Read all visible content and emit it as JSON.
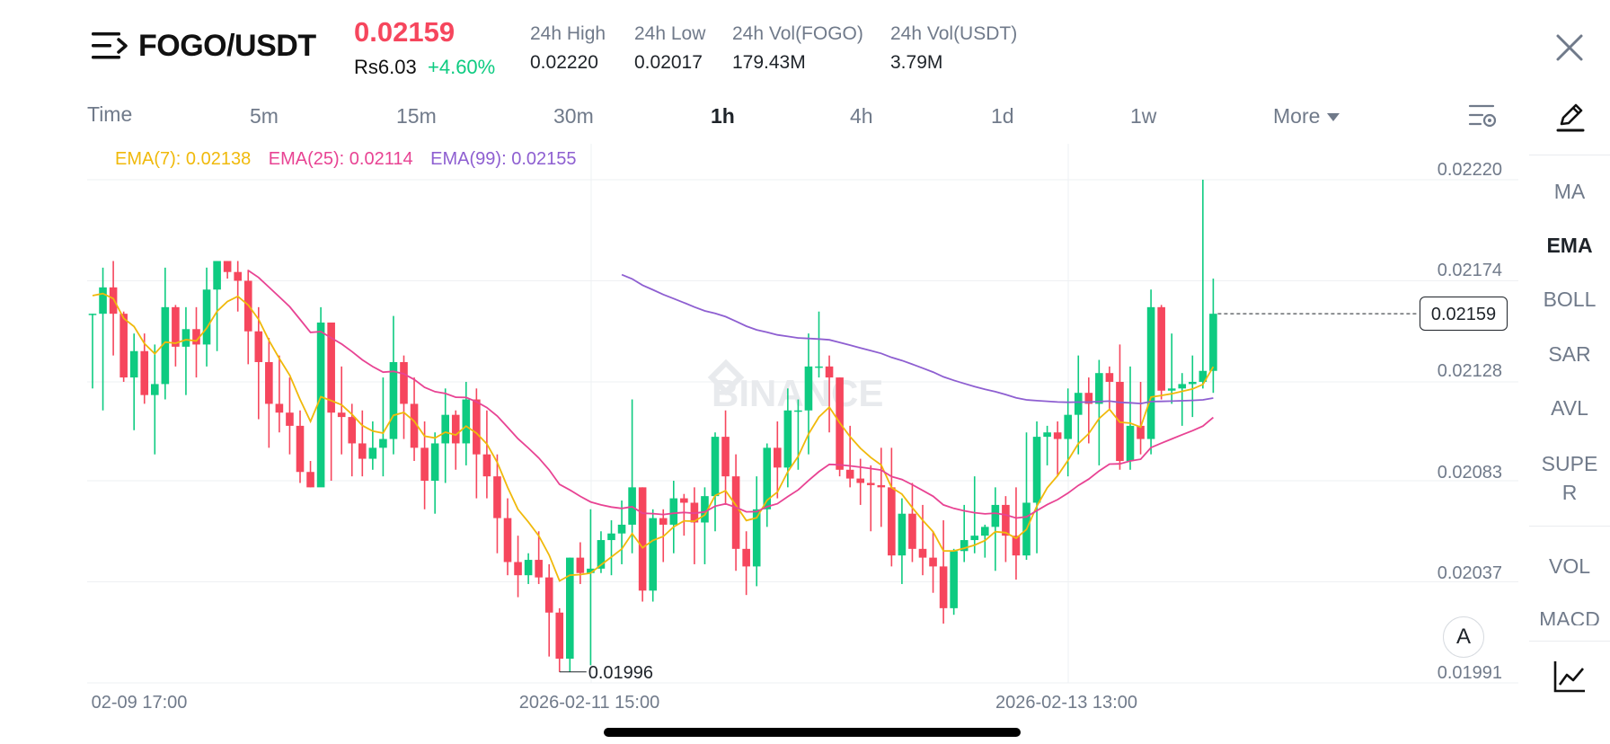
{
  "header": {
    "pair": "FOGO/USDT",
    "price": "0.02159",
    "price_inr": "Rs6.03",
    "change": "+4.60%",
    "stats": [
      {
        "label": "24h High",
        "value": "0.02220"
      },
      {
        "label": "24h Low",
        "value": "0.02017"
      },
      {
        "label": "24h Vol(FOGO)",
        "value": "179.43M"
      },
      {
        "label": "24h Vol(USDT)",
        "value": "3.79M"
      }
    ]
  },
  "timeframes": {
    "items": [
      "Time",
      "5m",
      "15m",
      "30m",
      "1h",
      "4h",
      "1d",
      "1w"
    ],
    "active": "1h",
    "more_label": "More"
  },
  "ema_legend": {
    "ema7": "EMA(7): 0.02138",
    "ema25": "EMA(25): 0.02114",
    "ema99": "EMA(99): 0.02155"
  },
  "sidebar": {
    "items": [
      "MA",
      "EMA",
      "BOLL",
      "SAR",
      "AVL",
      "SUPE\nR",
      "VOL",
      "MACD"
    ],
    "active": "EMA"
  },
  "colors": {
    "up": "#0ecb81",
    "down": "#f6465d",
    "ema7": "#f0b90b",
    "ema25": "#e84393",
    "ema99": "#8e5fd1",
    "watermark": "#e8eaed"
  },
  "watermark": "BINANCE",
  "a_button": "A",
  "chart_data": {
    "type": "candlestick",
    "y_ticks": [
      "0.02220",
      "0.02174",
      "0.02128",
      "0.02083",
      "0.02037",
      "0.01991"
    ],
    "ylim": [
      0.01991,
      0.0222
    ],
    "x_ticks": [
      "02-09 17:00",
      "2026-02-11 15:00",
      "2026-02-13 13:00"
    ],
    "last_price_label": "0.02159",
    "low_label": "0.01996",
    "candles": [
      [
        0.02159,
        0.02159,
        0.02125,
        0.02159
      ],
      [
        0.02159,
        0.0218,
        0.02115,
        0.02171
      ],
      [
        0.02171,
        0.02183,
        0.0214,
        0.02159
      ],
      [
        0.02159,
        0.0216,
        0.02128,
        0.0213
      ],
      [
        0.0213,
        0.0215,
        0.02106,
        0.02142
      ],
      [
        0.02142,
        0.0215,
        0.02118,
        0.02122
      ],
      [
        0.02122,
        0.02145,
        0.02095,
        0.02127
      ],
      [
        0.02127,
        0.0218,
        0.0212,
        0.02162
      ],
      [
        0.02162,
        0.02163,
        0.02135,
        0.02144
      ],
      [
        0.02144,
        0.02162,
        0.02122,
        0.02152
      ],
      [
        0.02152,
        0.02162,
        0.0213,
        0.02145
      ],
      [
        0.02145,
        0.0218,
        0.02135,
        0.0217
      ],
      [
        0.0217,
        0.02183,
        0.02142,
        0.02183
      ],
      [
        0.02183,
        0.02183,
        0.02175,
        0.02178
      ],
      [
        0.02178,
        0.02183,
        0.0216,
        0.02174
      ],
      [
        0.02174,
        0.02179,
        0.02136,
        0.02151
      ],
      [
        0.02151,
        0.02162,
        0.02111,
        0.02137
      ],
      [
        0.02137,
        0.02148,
        0.02098,
        0.02118
      ],
      [
        0.02118,
        0.0214,
        0.02105,
        0.02114
      ],
      [
        0.02114,
        0.0213,
        0.02095,
        0.02108
      ],
      [
        0.02108,
        0.02115,
        0.02082,
        0.02087
      ],
      [
        0.02087,
        0.02092,
        0.0208,
        0.0208
      ],
      [
        0.0208,
        0.02162,
        0.02082,
        0.02155
      ],
      [
        0.02155,
        0.02155,
        0.02083,
        0.02114
      ],
      [
        0.02114,
        0.02135,
        0.02095,
        0.02112
      ],
      [
        0.02112,
        0.02118,
        0.02085,
        0.021
      ],
      [
        0.021,
        0.02115,
        0.02085,
        0.02093
      ],
      [
        0.02093,
        0.0211,
        0.02088,
        0.02098
      ],
      [
        0.02098,
        0.0213,
        0.02085,
        0.02102
      ],
      [
        0.02102,
        0.02158,
        0.02095,
        0.02137
      ],
      [
        0.02137,
        0.0214,
        0.02102,
        0.02118
      ],
      [
        0.02118,
        0.0213,
        0.02092,
        0.02098
      ],
      [
        0.02098,
        0.0211,
        0.0207,
        0.02083
      ],
      [
        0.02083,
        0.02105,
        0.02068,
        0.021
      ],
      [
        0.021,
        0.02125,
        0.02082,
        0.02113
      ],
      [
        0.02113,
        0.02115,
        0.02088,
        0.021
      ],
      [
        0.021,
        0.02128,
        0.0209,
        0.0212
      ],
      [
        0.0212,
        0.02125,
        0.02075,
        0.02095
      ],
      [
        0.02095,
        0.02115,
        0.02075,
        0.02085
      ],
      [
        0.02085,
        0.02095,
        0.0205,
        0.02066
      ],
      [
        0.02066,
        0.02075,
        0.0204,
        0.02046
      ],
      [
        0.02046,
        0.02058,
        0.0203,
        0.0204
      ],
      [
        0.0204,
        0.0205,
        0.02036,
        0.02047
      ],
      [
        0.02047,
        0.0206,
        0.02036,
        0.02039
      ],
      [
        0.02039,
        0.02045,
        0.02003,
        0.02023
      ],
      [
        0.02023,
        0.02025,
        0.01996,
        0.02002
      ],
      [
        0.02002,
        0.02048,
        0.01996,
        0.02048
      ],
      [
        0.02048,
        0.02055,
        0.02036,
        0.02041
      ],
      [
        0.02041,
        0.0207,
        0.01999,
        0.02043
      ],
      [
        0.02043,
        0.0206,
        0.02041,
        0.02056
      ],
      [
        0.02056,
        0.02065,
        0.0204,
        0.02059
      ],
      [
        0.02059,
        0.02074,
        0.02045,
        0.02063
      ],
      [
        0.02063,
        0.0212,
        0.0205,
        0.0208
      ],
      [
        0.0208,
        0.0208,
        0.02028,
        0.02033
      ],
      [
        0.02033,
        0.0207,
        0.02028,
        0.02066
      ],
      [
        0.02066,
        0.0207,
        0.02046,
        0.02063
      ],
      [
        0.02063,
        0.02083,
        0.0205,
        0.02075
      ],
      [
        0.02075,
        0.02077,
        0.02058,
        0.02073
      ],
      [
        0.02073,
        0.0208,
        0.02045,
        0.02064
      ],
      [
        0.02064,
        0.0208,
        0.02045,
        0.02076
      ],
      [
        0.02076,
        0.02105,
        0.0206,
        0.02103
      ],
      [
        0.02103,
        0.02115,
        0.02072,
        0.02085
      ],
      [
        0.02085,
        0.02095,
        0.02042,
        0.02052
      ],
      [
        0.02052,
        0.0206,
        0.02031,
        0.02044
      ],
      [
        0.02044,
        0.02085,
        0.02035,
        0.0207
      ],
      [
        0.0207,
        0.021,
        0.02062,
        0.02098
      ],
      [
        0.02098,
        0.0211,
        0.02075,
        0.02089
      ],
      [
        0.02089,
        0.02125,
        0.0208,
        0.02115
      ],
      [
        0.02115,
        0.0212,
        0.02088,
        0.02115
      ],
      [
        0.02115,
        0.0215,
        0.02095,
        0.02135
      ],
      [
        0.02135,
        0.0216,
        0.0213,
        0.02135
      ],
      [
        0.02135,
        0.0214,
        0.02105,
        0.0213
      ],
      [
        0.0213,
        0.0213,
        0.02085,
        0.02088
      ],
      [
        0.02088,
        0.02108,
        0.0208,
        0.02084
      ],
      [
        0.02084,
        0.02093,
        0.02072,
        0.02082
      ],
      [
        0.02082,
        0.0209,
        0.0206,
        0.02081
      ],
      [
        0.02081,
        0.02098,
        0.02062,
        0.0208
      ],
      [
        0.0208,
        0.02098,
        0.02044,
        0.02049
      ],
      [
        0.02049,
        0.02075,
        0.02036,
        0.02068
      ],
      [
        0.02068,
        0.02082,
        0.02046,
        0.02052
      ],
      [
        0.02052,
        0.02072,
        0.0204,
        0.02048
      ],
      [
        0.02048,
        0.0206,
        0.02032,
        0.02044
      ],
      [
        0.02044,
        0.02065,
        0.02018,
        0.02025
      ],
      [
        0.02025,
        0.02052,
        0.02022,
        0.02051
      ],
      [
        0.02051,
        0.02072,
        0.02046,
        0.02056
      ],
      [
        0.02056,
        0.02085,
        0.0205,
        0.02058
      ],
      [
        0.02058,
        0.02063,
        0.02048,
        0.02062
      ],
      [
        0.02062,
        0.0208,
        0.02042,
        0.02072
      ],
      [
        0.02072,
        0.02076,
        0.02046,
        0.02058
      ],
      [
        0.02058,
        0.0208,
        0.02038,
        0.02049
      ],
      [
        0.02049,
        0.02105,
        0.02047,
        0.02073
      ],
      [
        0.02073,
        0.0211,
        0.0205,
        0.02103
      ],
      [
        0.02103,
        0.02108,
        0.0209,
        0.02105
      ],
      [
        0.02105,
        0.0211,
        0.02085,
        0.02102
      ],
      [
        0.02102,
        0.02125,
        0.02085,
        0.02113
      ],
      [
        0.02113,
        0.0214,
        0.02095,
        0.02123
      ],
      [
        0.02123,
        0.0213,
        0.021,
        0.02118
      ],
      [
        0.02118,
        0.02138,
        0.0209,
        0.02132
      ],
      [
        0.02132,
        0.02135,
        0.02115,
        0.02128
      ],
      [
        0.02128,
        0.02145,
        0.02088,
        0.02092
      ],
      [
        0.02092,
        0.02135,
        0.02088,
        0.02108
      ],
      [
        0.02108,
        0.02128,
        0.02095,
        0.02102
      ],
      [
        0.02102,
        0.0217,
        0.02095,
        0.02162
      ],
      [
        0.02162,
        0.02163,
        0.0212,
        0.02124
      ],
      [
        0.02124,
        0.0215,
        0.02118,
        0.02125
      ],
      [
        0.02125,
        0.02132,
        0.02108,
        0.02127
      ],
      [
        0.02127,
        0.0214,
        0.02112,
        0.02128
      ],
      [
        0.02128,
        0.0222,
        0.02125,
        0.02133
      ],
      [
        0.02133,
        0.02175,
        0.02123,
        0.02159
      ]
    ]
  }
}
